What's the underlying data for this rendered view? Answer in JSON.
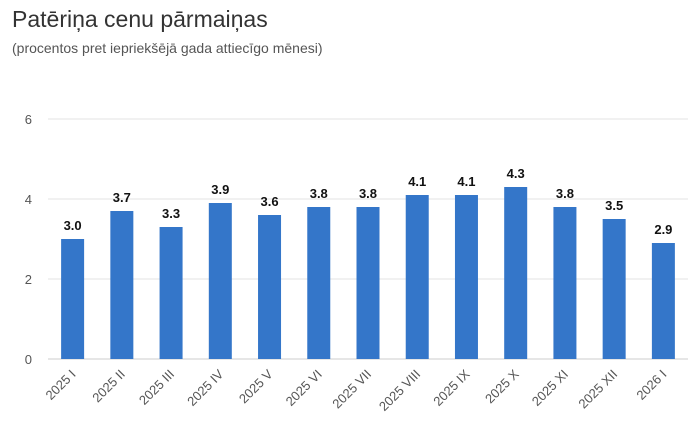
{
  "chart_data": {
    "type": "bar",
    "title": "Patēriņa cenu pārmaiņas",
    "subtitle": "(procentos pret iepriekšējā gada attiecīgo mēnesi)",
    "xlabel": "",
    "ylabel": "",
    "ylim": [
      0,
      6
    ],
    "yticks": [
      0,
      2,
      4,
      6
    ],
    "grid": true,
    "categories": [
      "2025 I",
      "2025 II",
      "2025 III",
      "2025 IV",
      "2025 V",
      "2025 VI",
      "2025 VII",
      "2025 VIII",
      "2025 IX",
      "2025 X",
      "2025 XI",
      "2025 XII",
      "2026 I"
    ],
    "values": [
      3.0,
      3.7,
      3.3,
      3.9,
      3.6,
      3.8,
      3.8,
      4.1,
      4.1,
      4.3,
      3.8,
      3.5,
      2.9
    ],
    "data_labels": [
      "3.0",
      "3.7",
      "3.3",
      "3.9",
      "3.6",
      "3.8",
      "3.8",
      "4.1",
      "4.1",
      "4.3",
      "3.8",
      "3.5",
      "2.9"
    ],
    "bar_color": "#3476c9",
    "grid_color": "#e3e3e3"
  }
}
